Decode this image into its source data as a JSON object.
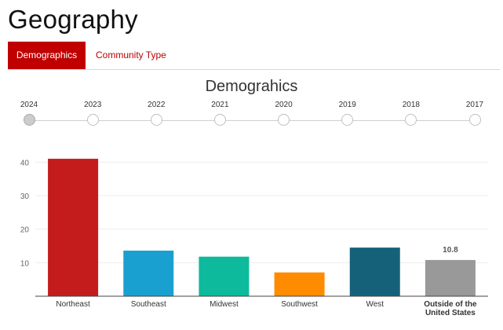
{
  "page": {
    "title": "Geography"
  },
  "tabs": [
    {
      "label": "Demographics",
      "active": true
    },
    {
      "label": "Community Type",
      "active": false
    }
  ],
  "section": {
    "title": "Demograhics"
  },
  "timeline": {
    "years": [
      "2024",
      "2023",
      "2022",
      "2021",
      "2020",
      "2019",
      "2018",
      "2017"
    ],
    "selected": "2024"
  },
  "colors": {
    "accent": "#c00000"
  },
  "chart_data": {
    "type": "bar",
    "categories": [
      "Northeast",
      "Southeast",
      "Midwest",
      "Southwest",
      "West",
      "Outside of the United States"
    ],
    "category_lines": [
      [
        "Northeast"
      ],
      [
        "Southeast"
      ],
      [
        "Midwest"
      ],
      [
        "Southwest"
      ],
      [
        "West"
      ],
      [
        "Outside of the",
        "United States"
      ]
    ],
    "values": [
      41,
      13.6,
      11.8,
      7.1,
      14.5,
      10.8
    ],
    "colors": [
      "#c41c1c",
      "#1aa0d0",
      "#0dba9c",
      "#ff8b00",
      "#16617a",
      "#999999"
    ],
    "data_labels": [
      "",
      "",
      "",
      "",
      "",
      "10.8"
    ],
    "yticks": [
      10,
      20,
      30,
      40
    ],
    "ylim": [
      0,
      45
    ],
    "grid": true,
    "title": "",
    "xlabel": "",
    "ylabel": ""
  }
}
